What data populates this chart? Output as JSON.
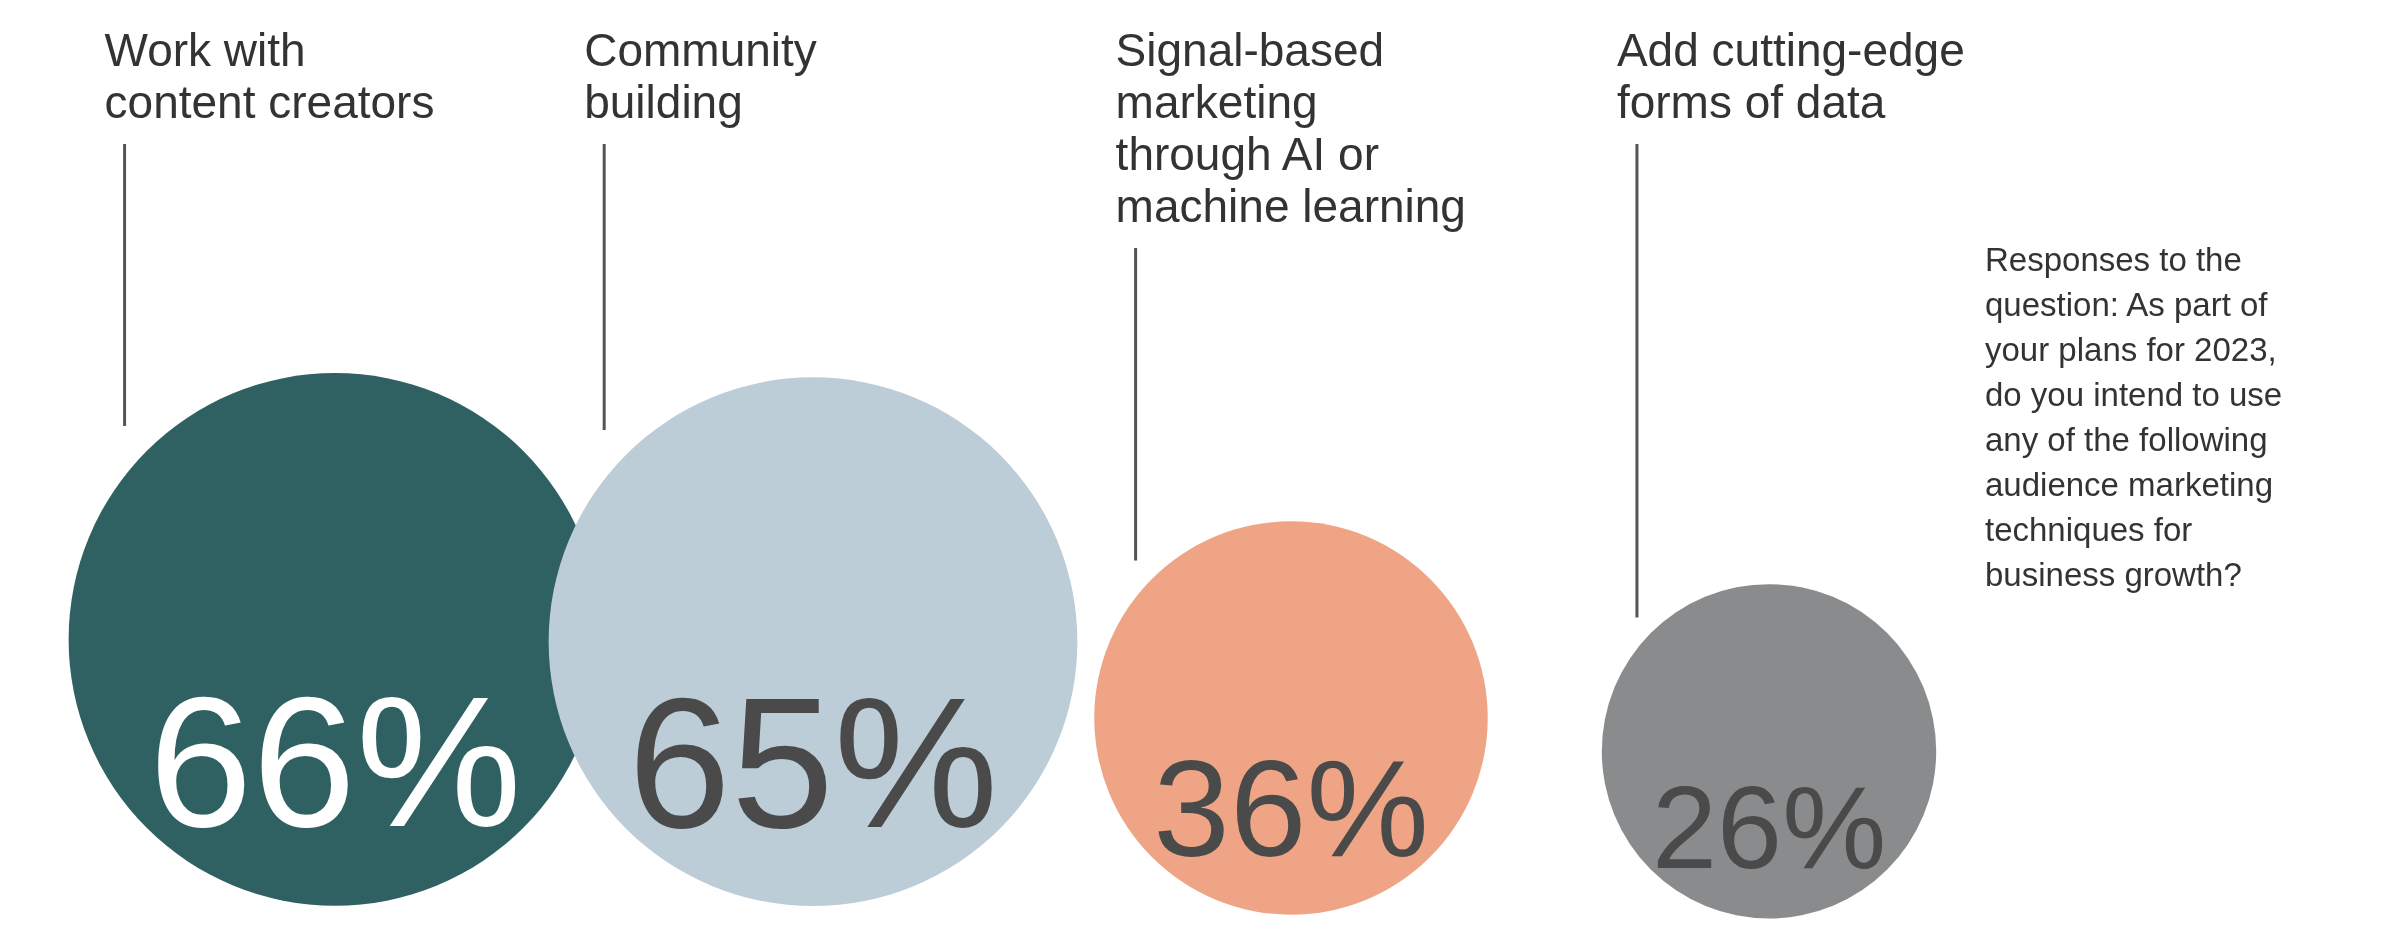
{
  "chart_data": {
    "type": "other",
    "categories": [
      "Work with content creators",
      "Community building",
      "Signal-based marketing through AI or machine learning",
      "Add cutting-edge forms of data"
    ],
    "values": [
      66,
      65,
      36,
      26
    ],
    "value_labels": [
      "66%",
      "65%",
      "36%",
      "26%"
    ],
    "colors": [
      "#2f6163",
      "#bccdd8",
      "#efa585",
      "#898b8c"
    ],
    "annotations": [
      "Responses to the question: As part of your plans for 2023, do you intend to use any of the following audience marketing techniques for business growth?"
    ]
  }
}
